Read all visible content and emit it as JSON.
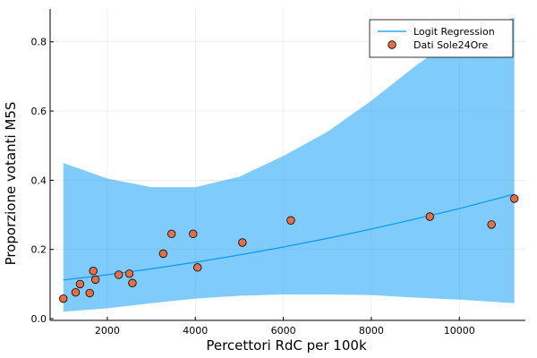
{
  "chart_data": {
    "type": "scatter",
    "xlabel": "Percettori RdC per 100k",
    "ylabel": "Proporzione votanti M5S",
    "xlim": [
      700,
      11500
    ],
    "ylim": [
      -0.005,
      0.895
    ],
    "x_ticks": [
      2000,
      4000,
      6000,
      8000,
      10000
    ],
    "x_tick_labels": [
      "2000",
      "4000",
      "6000",
      "8000",
      "10000"
    ],
    "y_ticks": [
      0.0,
      0.2,
      0.4,
      0.6,
      0.8
    ],
    "y_tick_labels": [
      "0.0",
      "0.2",
      "0.4",
      "0.6",
      "0.8"
    ],
    "grid": true,
    "legend_position": "top-right",
    "colors": {
      "fit": "#009AFA",
      "band": "#009AFA",
      "points": "#E26F46"
    },
    "series": [
      {
        "name": "Logit Regression",
        "kind": "line",
        "x": [
          1000,
          2000,
          3000,
          4000,
          5000,
          6000,
          7000,
          8000,
          9000,
          10000,
          11250
        ],
        "y": [
          0.112,
          0.127,
          0.144,
          0.163,
          0.184,
          0.207,
          0.232,
          0.259,
          0.288,
          0.318,
          0.36
        ],
        "ci_lower": [
          0.02,
          0.03,
          0.045,
          0.058,
          0.066,
          0.07,
          0.07,
          0.068,
          0.061,
          0.055,
          0.045
        ],
        "ci_upper": [
          0.45,
          0.405,
          0.38,
          0.38,
          0.41,
          0.47,
          0.54,
          0.63,
          0.73,
          0.82,
          0.87
        ]
      },
      {
        "name": "Dati Sole24Ore",
        "kind": "scatter",
        "x": [
          1000,
          1280,
          1380,
          1600,
          1680,
          1730,
          2260,
          2500,
          2570,
          3270,
          3460,
          3950,
          4050,
          5070,
          6170,
          9330,
          10730,
          11250
        ],
        "y": [
          0.058,
          0.076,
          0.1,
          0.074,
          0.138,
          0.113,
          0.127,
          0.13,
          0.103,
          0.188,
          0.245,
          0.245,
          0.148,
          0.22,
          0.284,
          0.295,
          0.272,
          0.347
        ]
      }
    ]
  }
}
